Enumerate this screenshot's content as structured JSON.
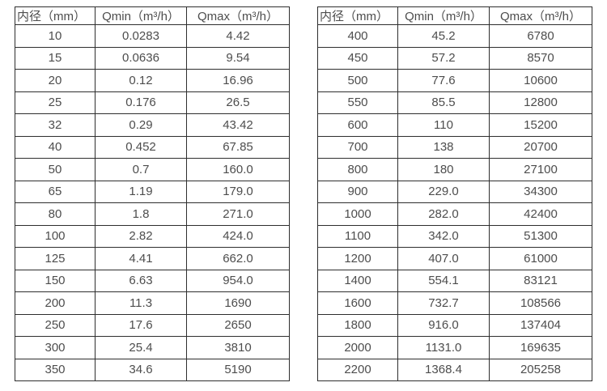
{
  "page": {
    "background": "#ffffff",
    "text_color": "#4d4d4d",
    "border_color": "#2e2e2e"
  },
  "tables": [
    {
      "name": "flow-table-small-diameters",
      "columns": [
        "内径（mm）",
        "Qmin（m³/h）",
        "Qmax（m³/h）"
      ],
      "rows": [
        [
          "10",
          "0.0283",
          "4.42"
        ],
        [
          "15",
          "0.0636",
          "9.54"
        ],
        [
          "20",
          "0.12",
          "16.96"
        ],
        [
          "25",
          "0.176",
          "26.5"
        ],
        [
          "32",
          "0.29",
          "43.42"
        ],
        [
          "40",
          "0.452",
          "67.85"
        ],
        [
          "50",
          "0.7",
          "160.0"
        ],
        [
          "65",
          "1.19",
          "179.0"
        ],
        [
          "80",
          "1.8",
          "271.0"
        ],
        [
          "100",
          "2.82",
          "424.0"
        ],
        [
          "125",
          "4.41",
          "662.0"
        ],
        [
          "150",
          "6.63",
          "954.0"
        ],
        [
          "200",
          "11.3",
          "1690"
        ],
        [
          "250",
          "17.6",
          "2650"
        ],
        [
          "300",
          "25.4",
          "3810"
        ],
        [
          "350",
          "34.6",
          "5190"
        ]
      ]
    },
    {
      "name": "flow-table-large-diameters",
      "columns": [
        "内径（mm）",
        "Qmin（m³/h）",
        "Qmax（m³/h）"
      ],
      "rows": [
        [
          "400",
          "45.2",
          "6780"
        ],
        [
          "450",
          "57.2",
          "8570"
        ],
        [
          "500",
          "77.6",
          "10600"
        ],
        [
          "550",
          "85.5",
          "12800"
        ],
        [
          "600",
          "110",
          "15200"
        ],
        [
          "700",
          "138",
          "20700"
        ],
        [
          "800",
          "180",
          "27100"
        ],
        [
          "900",
          "229.0",
          "34300"
        ],
        [
          "1000",
          "282.0",
          "42400"
        ],
        [
          "1100",
          "342.0",
          "51300"
        ],
        [
          "1200",
          "407.0",
          "61000"
        ],
        [
          "1400",
          "554.1",
          "83121"
        ],
        [
          "1600",
          "732.7",
          "108566"
        ],
        [
          "1800",
          "916.0",
          "137404"
        ],
        [
          "2000",
          "1131.0",
          "169635"
        ],
        [
          "2200",
          "1368.4",
          "205258"
        ]
      ]
    }
  ]
}
